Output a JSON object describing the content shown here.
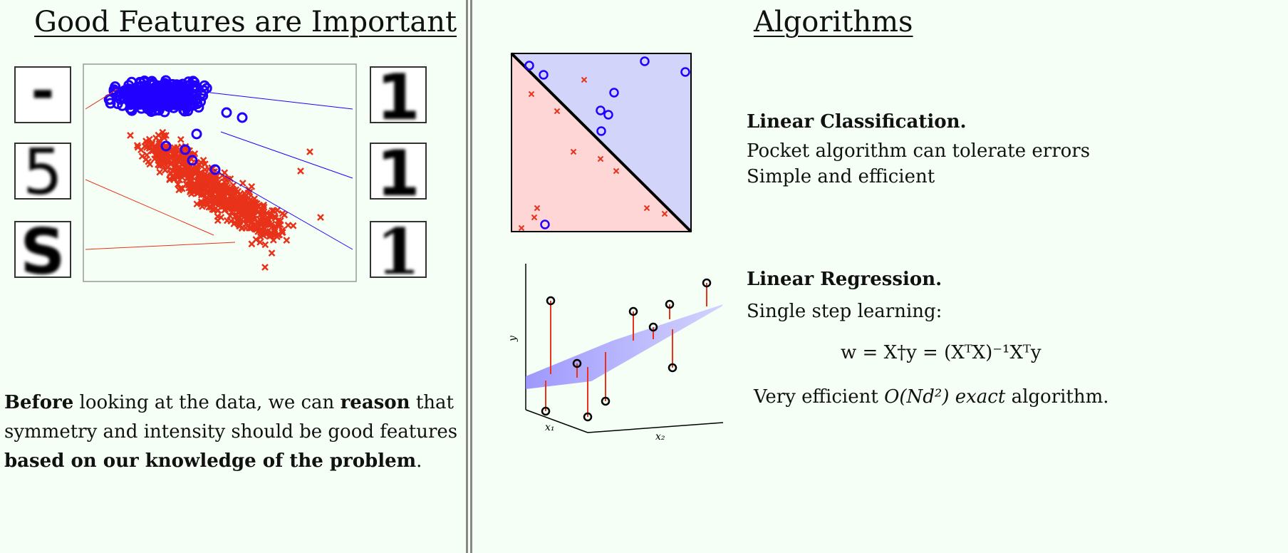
{
  "left": {
    "title": "Good Features are Important",
    "paragraph": {
      "line1": [
        {
          "text": "Before",
          "bold": true
        },
        {
          "text": " looking at the data, we can ",
          "bold": false
        },
        {
          "text": "reason",
          "bold": true
        },
        {
          "text": " that",
          "bold": false
        }
      ],
      "line2": "symmetry and intensity should be good features",
      "line3_bold": "based on our knowledge of the problem",
      "line3_end": "."
    },
    "digits_left": [
      "-",
      "5",
      "S"
    ],
    "digits_right": [
      "1",
      "1",
      "1"
    ],
    "colors": {
      "class_one": "#2200ff",
      "class_five": "#e8321a"
    }
  },
  "right": {
    "title": "Algorithms",
    "classification": {
      "heading": "Linear Classification.",
      "line1": "Pocket algorithm can tolerate errors",
      "line2": "Simple and efficient",
      "colors": {
        "blue_region": "#d2d4fa",
        "red_region": "#ffd6d6",
        "blue": "#2200ff",
        "red": "#e8321a"
      }
    },
    "regression": {
      "heading": "Linear Regression.",
      "line1": "Single step learning:",
      "formula": "w = X†y = (XᵀX)⁻¹Xᵀy",
      "line2_pre": "Very efficient ",
      "line2_math": "O(Nd²)",
      "line2_em": " exact",
      "line2_post": " algorithm.",
      "axis_y": "y",
      "axis_x1": "x₁",
      "axis_x2": "x₂"
    }
  }
}
